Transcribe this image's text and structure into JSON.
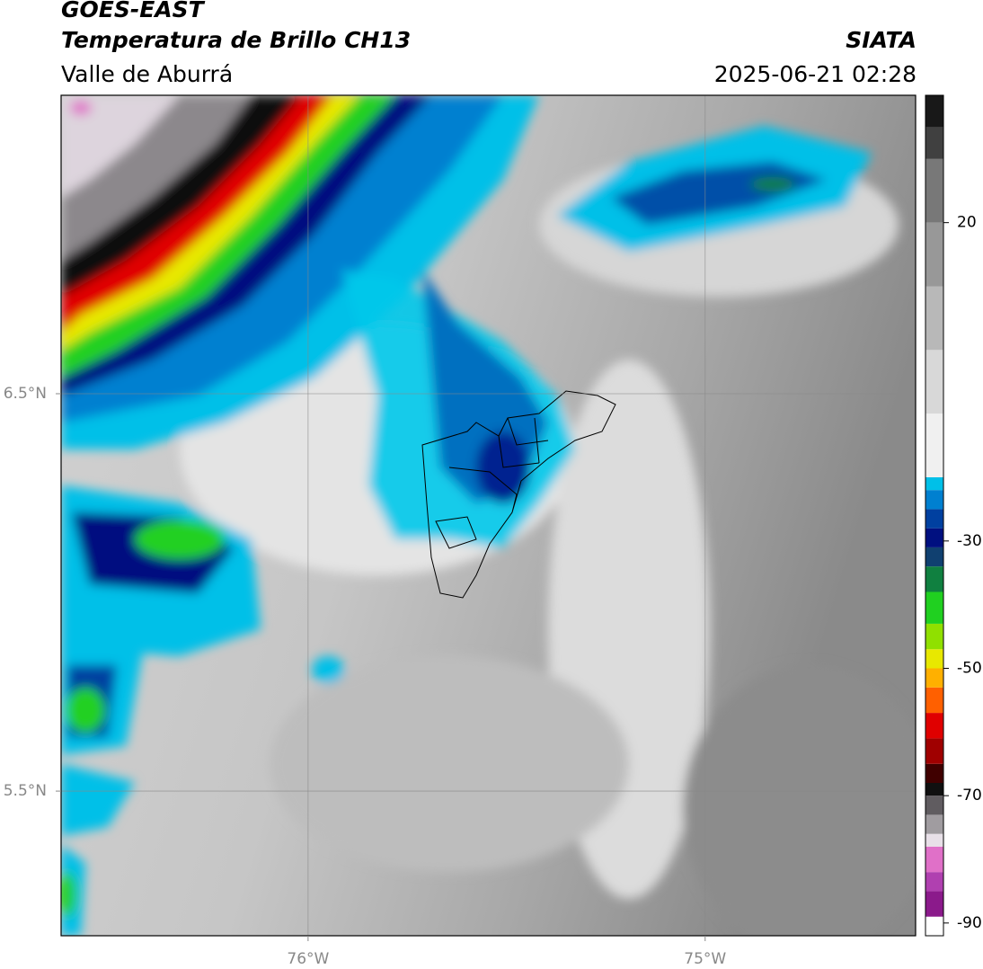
{
  "header": {
    "line1": "GOES-EAST",
    "line2": "Temperatura de Brillo CH13",
    "line3": "Valle de Aburrá",
    "source": "SIATA",
    "datetime": "2025-06-21 02:28"
  },
  "map": {
    "xlim": [
      -76.622,
      -74.47
    ],
    "ylim": [
      5.136,
      7.251
    ],
    "xticks": [
      {
        "value": -76,
        "label": "76°W"
      },
      {
        "value": -75,
        "label": "75°W"
      }
    ],
    "yticks": [
      {
        "value": 6.5,
        "label": "6.5°N"
      },
      {
        "value": 5.5,
        "label": "5.5°N"
      }
    ],
    "grid": true
  },
  "colorbar": {
    "lim": [
      -92,
      40
    ],
    "ticks": [
      20,
      -30,
      -50,
      -70,
      -90
    ],
    "bands": [
      {
        "value": -92,
        "color": "#ffffff"
      },
      {
        "value": -89,
        "color": "#8b1a8b"
      },
      {
        "value": -85,
        "color": "#b040b0"
      },
      {
        "value": -82,
        "color": "#e070c8"
      },
      {
        "value": -78,
        "color": "#e8e0e8"
      },
      {
        "value": -76,
        "color": "#a09ca0"
      },
      {
        "value": -73,
        "color": "#605c60"
      },
      {
        "value": -70,
        "color": "#101010"
      },
      {
        "value": -68,
        "color": "#400000"
      },
      {
        "value": -65,
        "color": "#a00000"
      },
      {
        "value": -61,
        "color": "#e00000"
      },
      {
        "value": -57,
        "color": "#ff6000"
      },
      {
        "value": -53,
        "color": "#ffb000"
      },
      {
        "value": -50,
        "color": "#e8e800"
      },
      {
        "value": -47,
        "color": "#90e000"
      },
      {
        "value": -43,
        "color": "#20d020"
      },
      {
        "value": -38,
        "color": "#108040"
      },
      {
        "value": -34,
        "color": "#104070"
      },
      {
        "value": -31,
        "color": "#001080"
      },
      {
        "value": -28,
        "color": "#0040a0"
      },
      {
        "value": -25,
        "color": "#0080d0"
      },
      {
        "value": -22,
        "color": "#00c0e8"
      },
      {
        "value": -20,
        "color": "#f0f0f0"
      },
      {
        "value": -10,
        "color": "#d8d8d8"
      },
      {
        "value": 0,
        "color": "#b8b8b8"
      },
      {
        "value": 10,
        "color": "#989898"
      },
      {
        "value": 20,
        "color": "#787878"
      },
      {
        "value": 30,
        "color": "#404040"
      },
      {
        "value": 35,
        "color": "#181818"
      }
    ]
  }
}
